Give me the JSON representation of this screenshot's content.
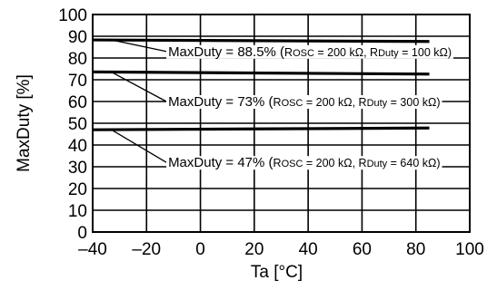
{
  "chart_data": {
    "type": "line",
    "xlabel": "Ta [°C]",
    "ylabel": "MaxDuty [%]",
    "xlim": [
      -40,
      100
    ],
    "ylim": [
      0,
      100
    ],
    "x_ticks": [
      -40,
      -20,
      0,
      20,
      40,
      60,
      80,
      100
    ],
    "y_ticks": [
      0,
      10,
      20,
      30,
      40,
      50,
      60,
      70,
      80,
      90,
      100
    ],
    "x_tick_labels": [
      "–40",
      "–20",
      "0",
      "20",
      "40",
      "60",
      "80",
      "100"
    ],
    "y_tick_labels": [
      "0",
      "10",
      "20",
      "30",
      "40",
      "50",
      "60",
      "70",
      "80",
      "90",
      "100"
    ],
    "grid": true,
    "series": [
      {
        "x": [
          -40,
          85
        ],
        "y": [
          88.3,
          87.6
        ]
      },
      {
        "x": [
          -40,
          85
        ],
        "y": [
          73.6,
          72.6
        ]
      },
      {
        "x": [
          -40,
          85
        ],
        "y": [
          47.0,
          47.8
        ]
      }
    ],
    "annotations": [
      {
        "main": "MaxDuty = 88.5% (",
        "r1": "R",
        "r1sub": "OSC",
        "mid": " = 200 kΩ, ",
        "r2": "R",
        "r2sub": "Duty",
        "tail": " = 100 kΩ)",
        "point": [
          -33,
          88.3
        ],
        "text_at": [
          -14,
          83
        ]
      },
      {
        "main": "MaxDuty = 73% (",
        "r1": "R",
        "r1sub": "OSC",
        "mid": " = 200 kΩ, ",
        "r2": "R",
        "r2sub": "Duty",
        "tail": " = 300 kΩ)",
        "point": [
          -33,
          73.5
        ],
        "text_at": [
          -14,
          60
        ]
      },
      {
        "main": "MaxDuty = 47% (",
        "r1": "R",
        "r1sub": "OSC",
        "mid": " = 200 kΩ, ",
        "r2": "R",
        "r2sub": "Duty",
        "tail": " = 640 kΩ)",
        "point": [
          -33,
          47.0
        ],
        "text_at": [
          -14,
          32
        ]
      }
    ]
  }
}
